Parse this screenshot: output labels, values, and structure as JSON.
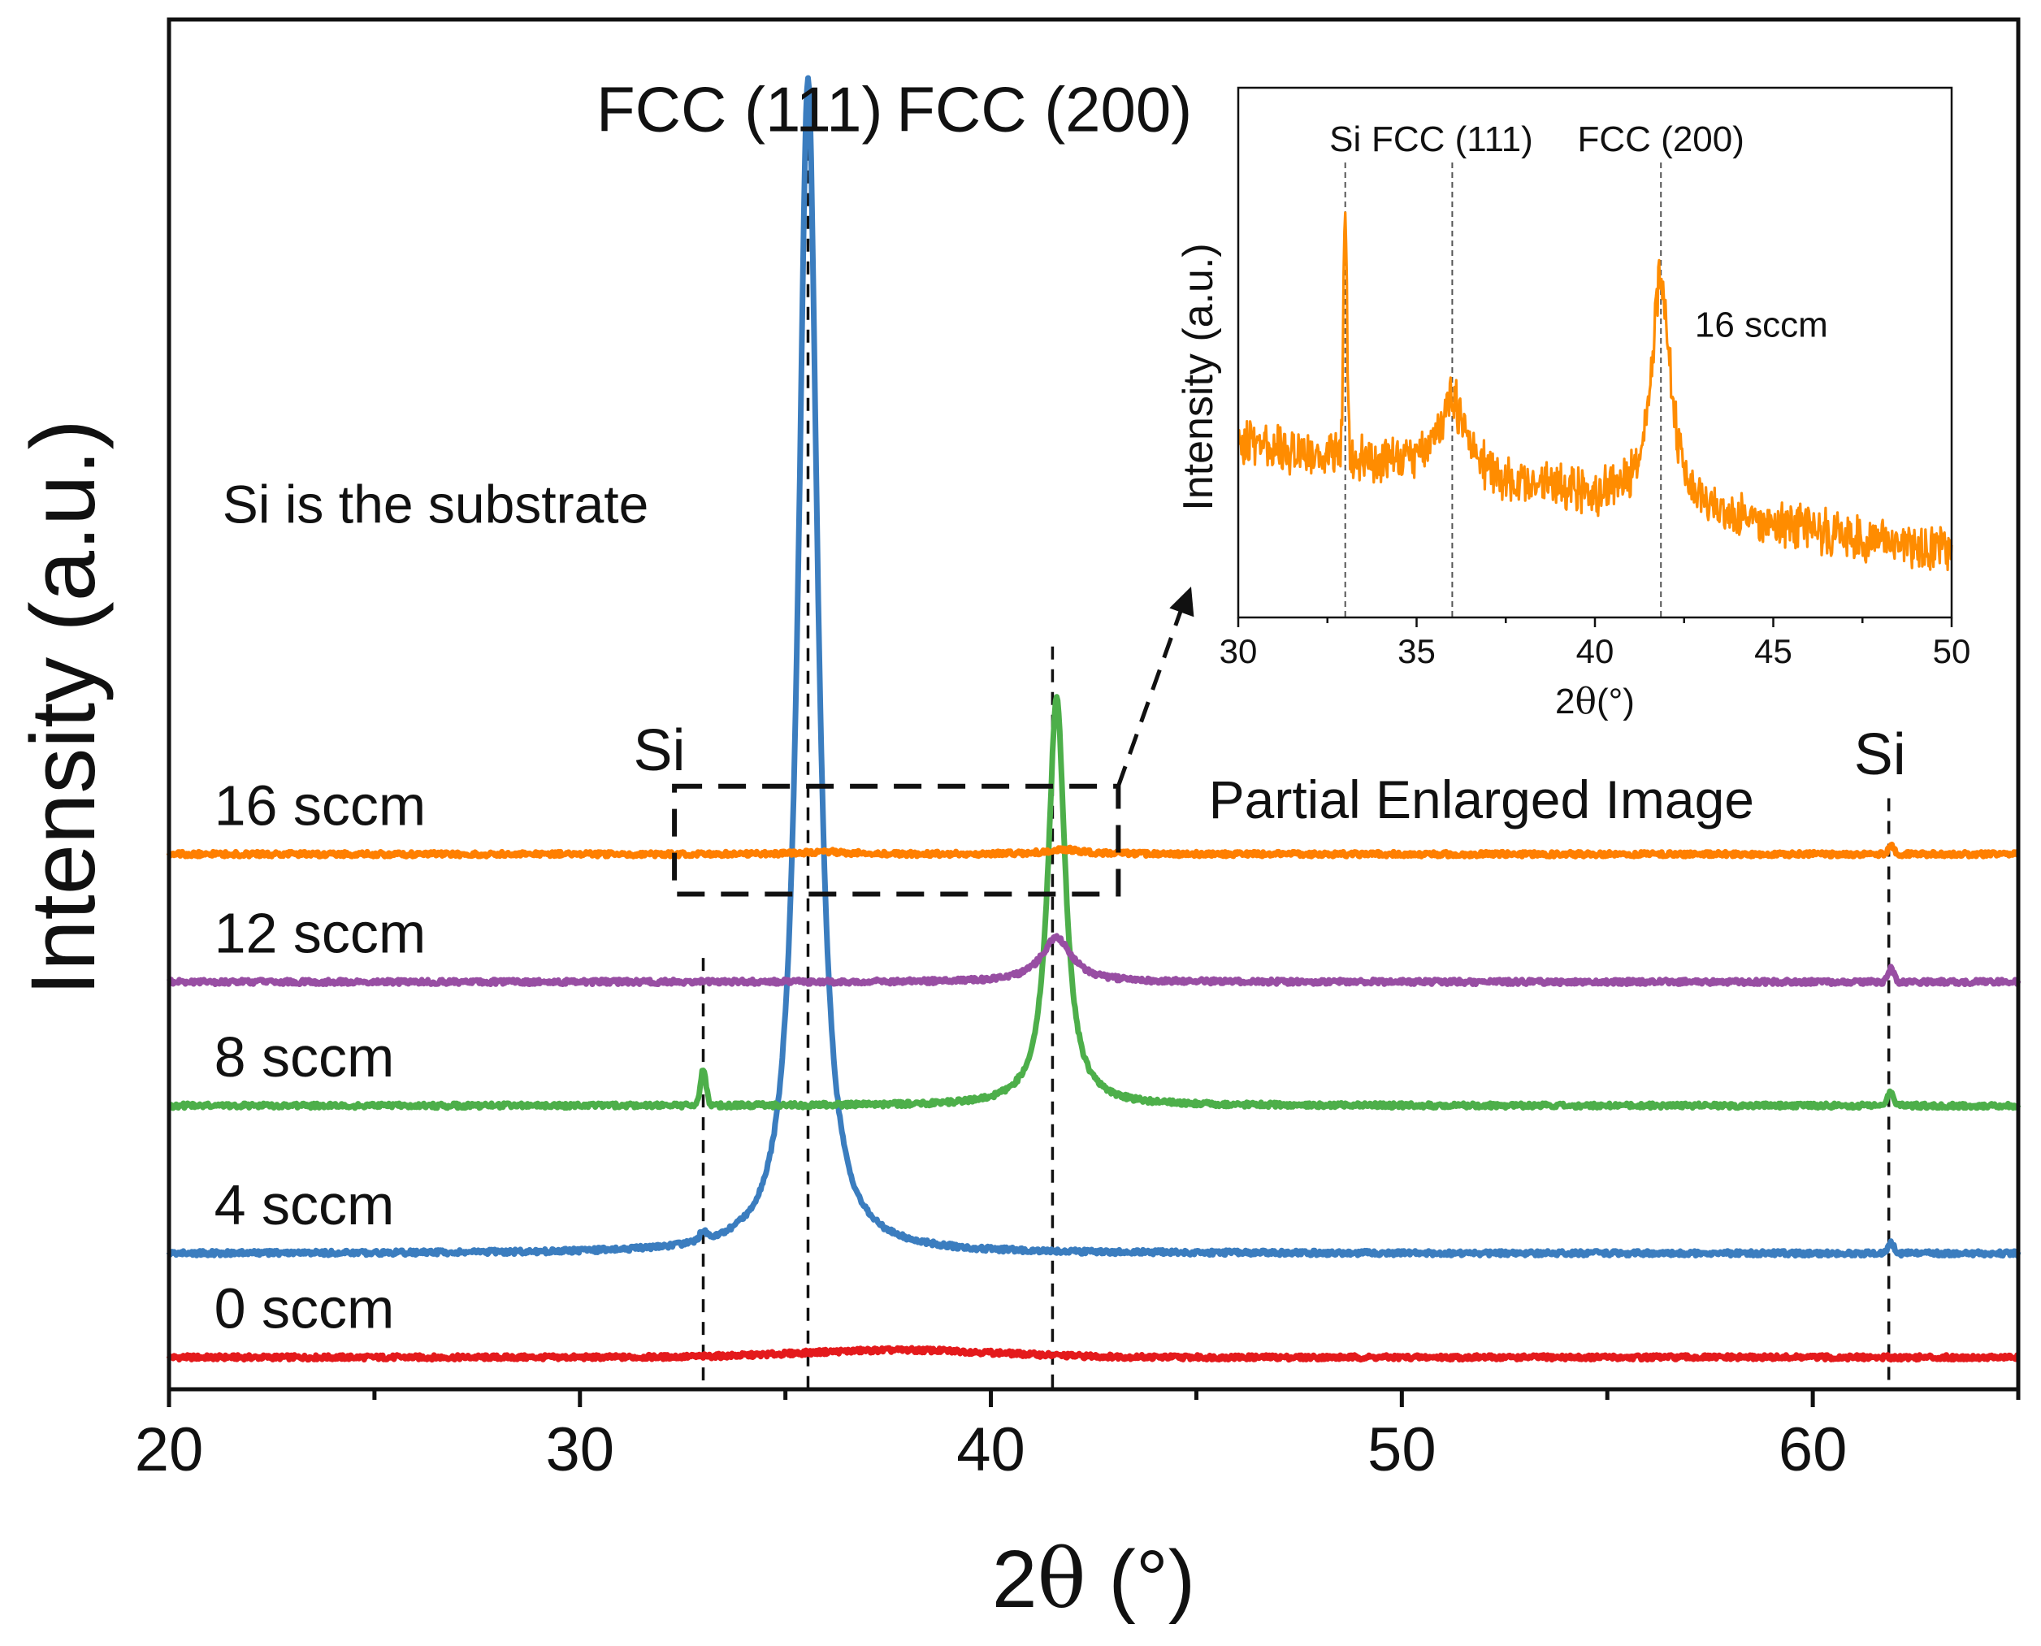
{
  "chart_data": {
    "type": "line",
    "main": {
      "xlabel_prefix": "2",
      "xlabel_theta": "θ",
      "xlabel_suffix": " (°)",
      "ylabel": "Intensity (a.u.)",
      "xlim": [
        20,
        65
      ],
      "xticks": [
        "20",
        "30",
        "40",
        "50",
        "60"
      ],
      "series": [
        {
          "name": "0 sccm",
          "label": "0 sccm",
          "color": "#e41a1c",
          "baseline": 0.0,
          "peaks": [
            {
              "x": 37.8,
              "h": 0.18,
              "w": 2.4,
              "shape": "gauss"
            }
          ]
        },
        {
          "name": "4 sccm",
          "label": "4 sccm",
          "color": "#3b7dbf",
          "baseline": 2.6,
          "peaks": [
            {
              "x": 35.55,
              "h": 29.4,
              "w": 0.28,
              "shape": "lorentz"
            },
            {
              "x": 33.0,
              "h": 0.25,
              "w": 0.08,
              "shape": "gauss"
            },
            {
              "x": 61.9,
              "h": 0.25,
              "w": 0.08,
              "shape": "gauss"
            }
          ]
        },
        {
          "name": "8 sccm",
          "label": "8 sccm",
          "color": "#4daf4a",
          "baseline": 6.3,
          "peaks": [
            {
              "x": 41.6,
              "h": 10.2,
              "w": 0.25,
              "shape": "lorentz"
            },
            {
              "x": 33.0,
              "h": 0.9,
              "w": 0.07,
              "shape": "gauss"
            },
            {
              "x": 61.9,
              "h": 0.35,
              "w": 0.07,
              "shape": "gauss"
            }
          ]
        },
        {
          "name": "12 sccm",
          "label": "12 sccm",
          "color": "#984ea3",
          "baseline": 9.4,
          "peaks": [
            {
              "x": 41.6,
              "h": 1.1,
              "w": 0.45,
              "shape": "lorentz"
            },
            {
              "x": 61.9,
              "h": 0.35,
              "w": 0.07,
              "shape": "gauss"
            }
          ]
        },
        {
          "name": "16 sccm",
          "label": "16 sccm",
          "color": "#ff7f00",
          "baseline": 12.6,
          "peaks": [
            {
              "x": 41.8,
              "h": 0.12,
              "w": 0.5,
              "shape": "lorentz"
            },
            {
              "x": 36.0,
              "h": 0.06,
              "w": 0.6,
              "shape": "lorentz"
            },
            {
              "x": 61.9,
              "h": 0.2,
              "w": 0.07,
              "shape": "gauss"
            }
          ]
        }
      ],
      "ylim": [
        -0.8,
        33.5
      ],
      "reference_lines": [
        {
          "x": 33.0,
          "top": 10.0
        },
        {
          "x": 35.55,
          "top": 32.0
        },
        {
          "x": 41.5,
          "top": 17.8
        },
        {
          "x": 61.85,
          "top": 14.0
        }
      ],
      "annotations": {
        "fcc111": "FCC (111)",
        "fcc200": "FCC (200)",
        "si_left": "Si",
        "si_right": "Si",
        "substrate_note": "Si is the substrate",
        "partial": "Partial Enlarged Image"
      },
      "zoom_box": {
        "x0": 32.3,
        "x1": 43.1,
        "y0": 11.6,
        "y1": 14.3
      }
    },
    "inset": {
      "xlabel_prefix": "2",
      "xlabel_theta": "θ",
      "xlabel_suffix": "(°)",
      "ylabel": "Intensity (a.u.)",
      "xlim": [
        30,
        50
      ],
      "xticks": [
        "30",
        "35",
        "40",
        "45",
        "50"
      ],
      "ylim": [
        0,
        1
      ],
      "series_label": "16 sccm",
      "color": "#ff8c00",
      "baseline_start": 0.33,
      "baseline_end": 0.12,
      "peaks": [
        {
          "x": 33.0,
          "h": 0.45,
          "w": 0.05,
          "shape": "gauss"
        },
        {
          "x": 36.0,
          "h": 0.14,
          "w": 0.45,
          "shape": "lorentz"
        },
        {
          "x": 41.85,
          "h": 0.44,
          "w": 0.32,
          "shape": "lorentz"
        }
      ],
      "reference_lines": [
        {
          "x": 33.0,
          "label": "Si"
        },
        {
          "x": 36.0,
          "label": "FCC (111)"
        },
        {
          "x": 41.85,
          "label": "FCC (200)"
        }
      ]
    }
  }
}
